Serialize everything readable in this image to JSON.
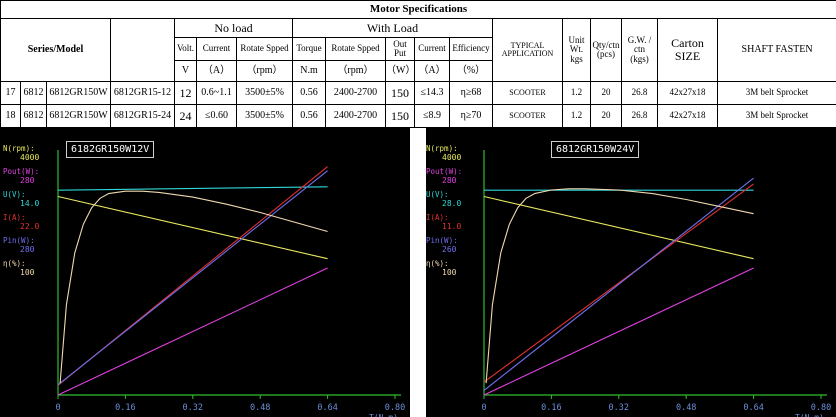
{
  "table": {
    "title": "Motor Specifications",
    "headers": {
      "series_model": "Series/Model",
      "no_load": "No load",
      "with_load": "With Load",
      "volt": "Volt.",
      "current": "Current",
      "rotate_speed": "Rotate Spped",
      "torque": "Torque",
      "output_1": "Out",
      "output_2": "Put",
      "efficiency": "Efficiency",
      "typical_1": "TYPICAL",
      "typical_2": "APPLICATION",
      "unit_wt_1": "Unit",
      "unit_wt_2": "Wt.",
      "unit_wt_3": "kgs",
      "qty_1": "Qty/ctn",
      "qty_2": "(pcs)",
      "gw_1": "G.W. /",
      "gw_2": "ctn",
      "gw_3": "(kgs)",
      "carton_1": "Carton",
      "carton_2": "SIZE",
      "shaft": "SHAFT  FASTEN"
    },
    "units": {
      "volt": "V",
      "current": "（A）",
      "rpm": "（rpm）",
      "torque": "N.m",
      "rpm2": "（rpm）",
      "watt": "（W）",
      "current2": "（A）",
      "percent": "（%）"
    },
    "rows": [
      {
        "no": "17",
        "series": "6812",
        "model": "6812GR150W",
        "code": "6812GR15-12",
        "volt": "12",
        "nl_current": "0.6~1.1",
        "nl_speed": "3500±5%",
        "torque": "0.56",
        "speed": "2400-2700",
        "output": "150",
        "current": "≤14.3",
        "efficiency": "η≥68",
        "application": "SCOOTER",
        "unit_wt": "1.2",
        "qty": "20",
        "gw": "26.8",
        "carton": "42x27x18",
        "shaft": "3M belt  Sprocket"
      },
      {
        "no": "18",
        "series": "6812",
        "model": "6812GR150W",
        "code": "6812GR15-24",
        "volt": "24",
        "nl_current": "≤0.60",
        "nl_speed": "3500±5%",
        "torque": "0.56",
        "speed": "2400-2700",
        "output": "150",
        "current": "≤8.9",
        "efficiency": "η≥70",
        "application": "SCOOTER",
        "unit_wt": "1.2",
        "qty": "20",
        "gw": "26.8",
        "carton": "42x27x18",
        "shaft": "3M belt  Sprocket"
      }
    ]
  },
  "colors": {
    "plot_bg": "#000000",
    "axis": "#2fbf2f",
    "speed": "#e8e860",
    "pout": "#e040e0",
    "voltage": "#30d8d8",
    "current": "#e03030",
    "pin": "#7070f0",
    "efficiency": "#f0d8b0"
  },
  "chart_data": [
    {
      "type": "line",
      "title": "6182GR150W12V",
      "xlabel": "T(N.m)",
      "xlim": [
        0,
        0.8
      ],
      "x_ticks": [
        "0",
        "0.16",
        "0.32",
        "0.48",
        "0.64",
        "0.80"
      ],
      "axis_labels": [
        {
          "name": "N(rpm):",
          "max": "4000",
          "color": "#e8e860"
        },
        {
          "name": "Pout(W):",
          "max": "280",
          "color": "#e040e0"
        },
        {
          "name": "U(V):",
          "max": "14.0",
          "color": "#30d8d8"
        },
        {
          "name": "I(A):",
          "max": "22.0",
          "color": "#e03030"
        },
        {
          "name": "Pin(W):",
          "max": "280",
          "color": "#7070f0"
        },
        {
          "name": "η(%):",
          "max": "100",
          "color": "#f0d8b0"
        }
      ],
      "series": [
        {
          "key": "speed",
          "ymax": 4000,
          "x": [
            0,
            0.64
          ],
          "y": [
            3350,
            2300
          ]
        },
        {
          "key": "pout",
          "ymax": 280,
          "x": [
            0,
            0.64
          ],
          "y": [
            0,
            150
          ]
        },
        {
          "key": "voltage",
          "ymax": 14.0,
          "x": [
            0,
            0.64
          ],
          "y": [
            12.1,
            12.3
          ]
        },
        {
          "key": "current",
          "ymax": 22.0,
          "x": [
            0,
            0.64
          ],
          "y": [
            0.9,
            21.2
          ]
        },
        {
          "key": "pin",
          "ymax": 280,
          "x": [
            0,
            0.64
          ],
          "y": [
            12,
            265
          ]
        },
        {
          "key": "efficiency",
          "ymax": 100,
          "x": [
            0.005,
            0.02,
            0.04,
            0.06,
            0.08,
            0.1,
            0.12,
            0.16,
            0.2,
            0.24,
            0.32,
            0.4,
            0.48,
            0.56,
            0.64
          ],
          "y": [
            5,
            38,
            60,
            72,
            79,
            83,
            85,
            86,
            86,
            85.5,
            83.5,
            80.5,
            77,
            73,
            69
          ]
        }
      ]
    },
    {
      "type": "line",
      "title": "6812GR150W24V",
      "xlabel": "T(N.m)",
      "xlim": [
        0,
        0.8
      ],
      "x_ticks": [
        "0",
        "0.16",
        "0.32",
        "0.48",
        "0.64",
        "0.80"
      ],
      "axis_labels": [
        {
          "name": "N(rpm):",
          "max": "4000",
          "color": "#e8e860"
        },
        {
          "name": "Pout(W):",
          "max": "280",
          "color": "#e040e0"
        },
        {
          "name": "U(V):",
          "max": "28.0",
          "color": "#30d8d8"
        },
        {
          "name": "I(A):",
          "max": "11.0",
          "color": "#e03030"
        },
        {
          "name": "Pin(W):",
          "max": "260",
          "color": "#7070f0"
        },
        {
          "name": "η(%):",
          "max": "100",
          "color": "#f0d8b0"
        }
      ],
      "series": [
        {
          "key": "speed",
          "ymax": 4000,
          "x": [
            0,
            0.64
          ],
          "y": [
            3350,
            2300
          ]
        },
        {
          "key": "pout",
          "ymax": 280,
          "x": [
            0,
            0.64
          ],
          "y": [
            0,
            150
          ]
        },
        {
          "key": "voltage",
          "ymax": 28.0,
          "x": [
            0,
            0.64
          ],
          "y": [
            24.2,
            24.2
          ]
        },
        {
          "key": "current",
          "ymax": 11.0,
          "x": [
            0,
            0.64
          ],
          "y": [
            0.6,
            9.8
          ]
        },
        {
          "key": "pin",
          "ymax": 260,
          "x": [
            0,
            0.64
          ],
          "y": [
            5,
            238
          ]
        },
        {
          "key": "efficiency",
          "ymax": 100,
          "x": [
            0.005,
            0.02,
            0.04,
            0.06,
            0.08,
            0.1,
            0.12,
            0.16,
            0.2,
            0.24,
            0.32,
            0.4,
            0.48,
            0.56,
            0.64
          ],
          "y": [
            5,
            38,
            60,
            72,
            79,
            83,
            85,
            86.5,
            87,
            87,
            86.5,
            85,
            82.5,
            79.5,
            76.5
          ]
        }
      ]
    }
  ]
}
